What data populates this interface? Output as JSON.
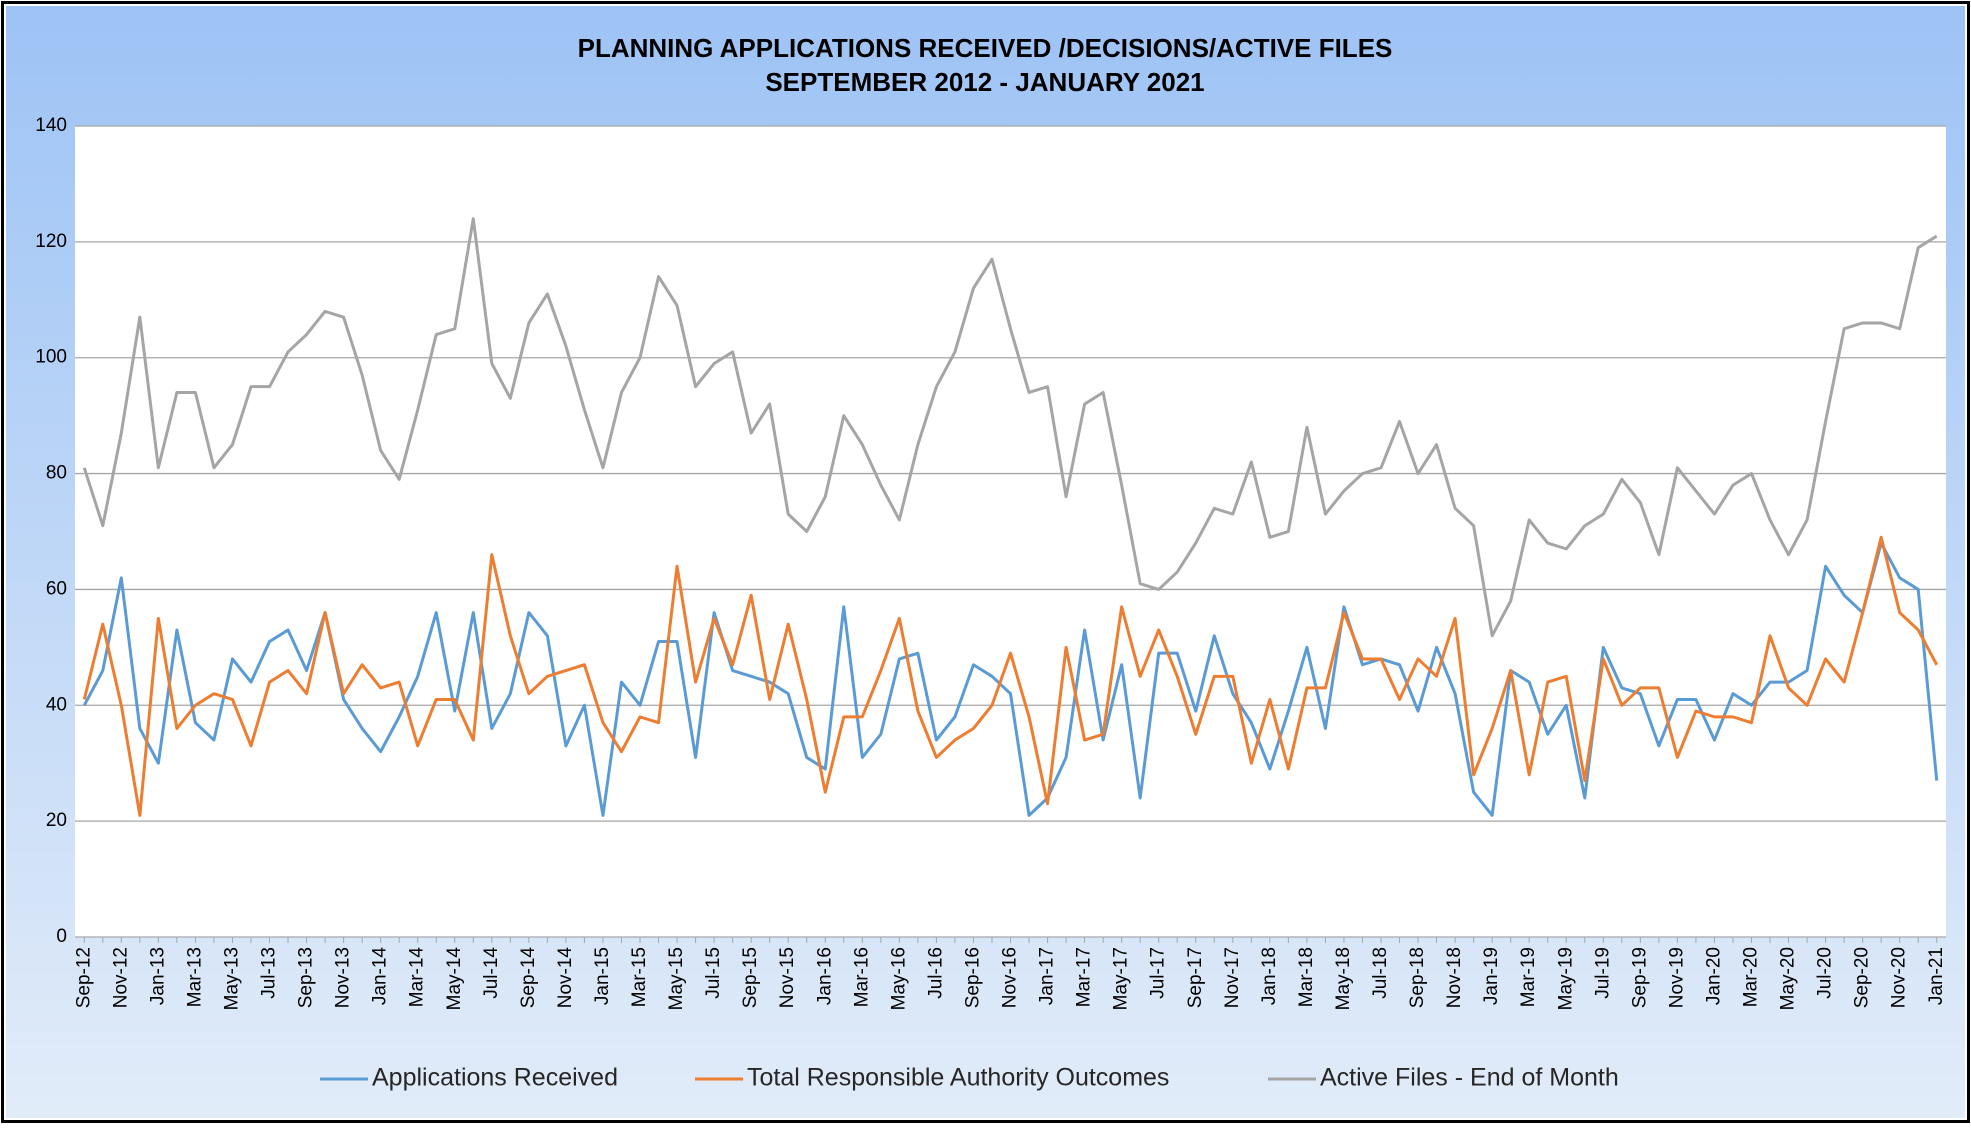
{
  "chart_data": {
    "type": "line",
    "title": "PLANNING APPLICATIONS RECEIVED /DECISIONS/ACTIVE FILES",
    "subtitle": "SEPTEMBER 2012 - JANUARY 2021",
    "categories": [
      "Sep-12",
      null,
      "Nov-12",
      null,
      "Jan-13",
      null,
      "Mar-13",
      null,
      "May-13",
      null,
      "Jul-13",
      null,
      "Sep-13",
      null,
      "Nov-13",
      null,
      "Jan-14",
      null,
      "Mar-14",
      null,
      "May-14",
      null,
      "Jul-14",
      null,
      "Sep-14",
      null,
      "Nov-14",
      null,
      "Jan-15",
      null,
      "Mar-15",
      null,
      "May-15",
      null,
      "Jul-15",
      null,
      "Sep-15",
      null,
      "Nov-15",
      null,
      "Jan-16",
      null,
      "Mar-16",
      null,
      "May-16",
      null,
      "Jul-16",
      null,
      "Sep-16",
      null,
      "Nov-16",
      null,
      "Jan-17",
      null,
      "Mar-17",
      null,
      "May-17",
      null,
      "Jul-17",
      null,
      "Sep-17",
      null,
      "Nov-17",
      null,
      "Jan-18",
      null,
      "Mar-18",
      null,
      "May-18",
      null,
      "Jul-18",
      null,
      "Sep-18",
      null,
      "Nov-18",
      null,
      "Jan-19",
      null,
      "Mar-19",
      null,
      "May-19",
      null,
      "Jul-19",
      null,
      "Sep-19",
      null,
      "Nov-19",
      null,
      "Jan-20",
      null,
      "Mar-20",
      null,
      "May-20",
      null,
      "Jul-20",
      null,
      "Sep-20",
      null,
      "Nov-20",
      null,
      "Jan-21"
    ],
    "series": [
      {
        "name": "Applications Received",
        "color": "#5b9bd5",
        "values": [
          40,
          46,
          62,
          36,
          30,
          53,
          37,
          34,
          48,
          44,
          51,
          53,
          46,
          56,
          41,
          36,
          32,
          38,
          45,
          56,
          39,
          56,
          36,
          42,
          56,
          52,
          33,
          40,
          21,
          44,
          40,
          51,
          51,
          31,
          56,
          46,
          45,
          44,
          42,
          31,
          29,
          57,
          31,
          35,
          48,
          49,
          34,
          38,
          47,
          45,
          42,
          21,
          24,
          31,
          53,
          34,
          47,
          24,
          49,
          49,
          39,
          52,
          42,
          37,
          29,
          39,
          50,
          36,
          57,
          47,
          48,
          47,
          39,
          50,
          42,
          25,
          21,
          46,
          44,
          35,
          40,
          24,
          50,
          43,
          42,
          33,
          41,
          41,
          34,
          42,
          40,
          44,
          44,
          46,
          64,
          59,
          56,
          68,
          62,
          60,
          27
        ]
      },
      {
        "name": "Total Responsible Authority Outcomes",
        "color": "#ed7d31",
        "values": [
          41,
          54,
          40,
          21,
          55,
          36,
          40,
          42,
          41,
          33,
          44,
          46,
          42,
          56,
          42,
          47,
          43,
          44,
          33,
          41,
          41,
          34,
          66,
          52,
          42,
          45,
          46,
          47,
          37,
          32,
          38,
          37,
          64,
          44,
          55,
          47,
          59,
          41,
          54,
          41,
          25,
          38,
          38,
          46,
          55,
          39,
          31,
          34,
          36,
          40,
          49,
          38,
          23,
          50,
          34,
          35,
          57,
          45,
          53,
          45,
          35,
          45,
          45,
          30,
          41,
          29,
          43,
          43,
          56,
          48,
          48,
          41,
          48,
          45,
          55,
          28,
          36,
          46,
          28,
          44,
          45,
          27,
          48,
          40,
          43,
          43,
          31,
          39,
          38,
          38,
          37,
          52,
          43,
          40,
          48,
          44,
          56,
          69,
          56,
          53,
          47
        ]
      },
      {
        "name": "Active Files - End of Month",
        "color": "#a5a5a5",
        "values": [
          81,
          71,
          87,
          107,
          81,
          94,
          94,
          81,
          85,
          95,
          95,
          101,
          104,
          108,
          107,
          97,
          84,
          79,
          91,
          104,
          105,
          124,
          99,
          93,
          106,
          111,
          102,
          91,
          81,
          94,
          100,
          114,
          109,
          95,
          99,
          101,
          87,
          92,
          73,
          70,
          76,
          90,
          85,
          78,
          72,
          85,
          95,
          101,
          112,
          117,
          105,
          94,
          95,
          76,
          92,
          94,
          78,
          61,
          60,
          63,
          68,
          74,
          73,
          82,
          69,
          70,
          88,
          73,
          77,
          80,
          81,
          89,
          80,
          85,
          74,
          71,
          52,
          58,
          72,
          68,
          67,
          71,
          73,
          79,
          75,
          66,
          81,
          77,
          73,
          78,
          80,
          72,
          66,
          72,
          89,
          105,
          106,
          106,
          105,
          119,
          121
        ]
      }
    ],
    "ylim": [
      0,
      140
    ],
    "yticks": [
      0,
      20,
      40,
      60,
      80,
      100,
      120,
      140
    ],
    "grid": true,
    "legend": "bottom"
  }
}
